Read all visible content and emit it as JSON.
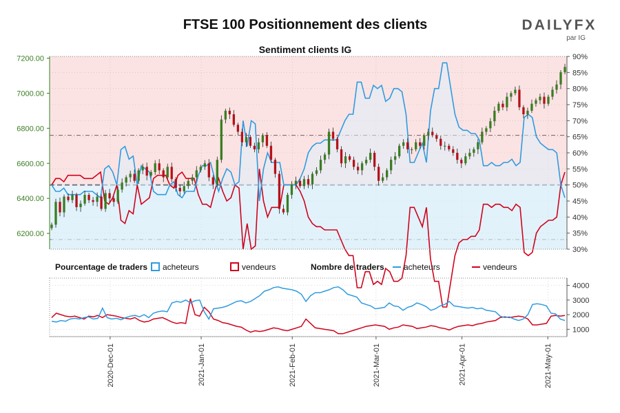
{
  "header": {
    "title": "FTSE 100 Positionnement des clients",
    "subtitle": "Sentiment clients IG",
    "logo_text": "DAILYFX",
    "logo_sub": "par IG"
  },
  "legend": {
    "pct_title": "Pourcentage de traders",
    "pct_buyers": "acheteurs",
    "pct_sellers": "vendeurs",
    "count_title": "Nombre de traders",
    "count_buyers": "acheteurs",
    "count_sellers": "vendeurs"
  },
  "colors": {
    "buyers": "#2f9be0",
    "sellers": "#d0021b",
    "candle_up": "#3a7d22",
    "candle_down": "#b5121b",
    "price_axis": "#3a7d22",
    "top_fill": "#fbe3e3",
    "bottom_fill": "#e6f3fb"
  },
  "chart_data": [
    {
      "type": "candlestick+line",
      "name": "price_and_sentiment",
      "left_axis": {
        "ylim": [
          6110,
          7210
        ],
        "ticks": [
          6200,
          6400,
          6600,
          6800,
          7000,
          7200
        ],
        "tick_labels": [
          "6200.00",
          "6400.00",
          "6600.00",
          "6800.00",
          "7000.00",
          "7200.00"
        ]
      },
      "right_axis": {
        "ylim": [
          30,
          90
        ],
        "ticks": [
          30,
          35,
          40,
          45,
          50,
          55,
          60,
          65,
          70,
          75,
          80,
          85,
          90
        ],
        "tick_labels": [
          "30%",
          "35%",
          "40%",
          "45%",
          "50%",
          "55%",
          "60%",
          "65%",
          "70%",
          "75%",
          "80%",
          "85%",
          "90%"
        ]
      },
      "reference_lines": {
        "dashdot_price": 6760,
        "dashdot_low_pct": 33,
        "dashed_mid_pct": 50
      },
      "price_closes": [
        6250,
        6380,
        6320,
        6410,
        6390,
        6420,
        6350,
        6370,
        6420,
        6390,
        6380,
        6410,
        6340,
        6430,
        6400,
        6380,
        6450,
        6490,
        6520,
        6540,
        6500,
        6560,
        6580,
        6530,
        6550,
        6600,
        6560,
        6520,
        6580,
        6510,
        6460,
        6440,
        6470,
        6500,
        6520,
        6560,
        6580,
        6600,
        6520,
        6480,
        6620,
        6850,
        6900,
        6880,
        6820,
        6780,
        6720,
        6750,
        6700,
        6680,
        6720,
        6760,
        6700,
        6620,
        6540,
        6340,
        6320,
        6420,
        6480,
        6500,
        6470,
        6510,
        6480,
        6540,
        6560,
        6620,
        6650,
        6780,
        6740,
        6680,
        6600,
        6640,
        6620,
        6580,
        6560,
        6600,
        6620,
        6660,
        6580,
        6500,
        6520,
        6560,
        6620,
        6640,
        6700,
        6720,
        6680,
        6680,
        6720,
        6700,
        6760,
        6780,
        6760,
        6740,
        6700,
        6700,
        6680,
        6660,
        6620,
        6600,
        6640,
        6660,
        6680,
        6720,
        6780,
        6800,
        6840,
        6900,
        6940,
        6920,
        6980,
        7000,
        7020,
        6920,
        6880,
        6900,
        6940,
        6960,
        6980,
        6940,
        6980,
        7020,
        7050,
        7120,
        7150
      ],
      "sentiment_pct_buyers": [
        50,
        48,
        48,
        49,
        47,
        47,
        47,
        47,
        48,
        48,
        48,
        47,
        46,
        55,
        56,
        54,
        50,
        61,
        62,
        58,
        59,
        50,
        56,
        55,
        54,
        48,
        47,
        47,
        47,
        50,
        51,
        47,
        46,
        48,
        48,
        48,
        53,
        56,
        56,
        57,
        52,
        48,
        52,
        55,
        54,
        50,
        51,
        70,
        62,
        70,
        69,
        45,
        55,
        60,
        57,
        57,
        57,
        50,
        50,
        50,
        50,
        52,
        55,
        60,
        62,
        63,
        63,
        64,
        64,
        64,
        64,
        67,
        70,
        72,
        72,
        82,
        82,
        77,
        77,
        81,
        80,
        81,
        76,
        77,
        80,
        80,
        79,
        72,
        57,
        57,
        60,
        63,
        57,
        73,
        80,
        80,
        88,
        88,
        80,
        72,
        68,
        67,
        67,
        66,
        66,
        64,
        56,
        56,
        57,
        56,
        56,
        57,
        57,
        58,
        56,
        57,
        71,
        72,
        71,
        65,
        63,
        62,
        61,
        61,
        60,
        50,
        46
      ]
    },
    {
      "type": "line",
      "name": "trader_counts",
      "ylim": [
        500,
        4500
      ],
      "ticks": [
        1000,
        2000,
        3000,
        4000
      ],
      "tick_labels": [
        "1000",
        "2000",
        "3000",
        "4000"
      ],
      "x_tick_labels": [
        "2020-Dec-01",
        "2021-Jan-01",
        "2021-Feb-01",
        "2021-Mar-01",
        "2021-Apr-01",
        "2021-May-01"
      ],
      "buyers": [
        1550,
        1500,
        1600,
        1550,
        1700,
        1750,
        1700,
        1800,
        1850,
        1700,
        1750,
        2450,
        1800,
        1700,
        1750,
        1650,
        1800,
        1900,
        1950,
        1850,
        2000,
        1800,
        2100,
        2200,
        2250,
        2200,
        2800,
        2900,
        2850,
        3000,
        2800,
        2950,
        3000,
        2200,
        1700,
        2400,
        2450,
        2500,
        2600,
        2750,
        2900,
        2950,
        2800,
        2900,
        3100,
        3300,
        3600,
        3700,
        3850,
        3900,
        3800,
        3750,
        3700,
        3600,
        3400,
        2900,
        3300,
        3500,
        3500,
        3600,
        3700,
        3850,
        3900,
        3700,
        3400,
        3300,
        3200,
        2800,
        2700,
        2600,
        2400,
        2450,
        2500,
        2800,
        2600,
        2550,
        2300,
        2500,
        2600,
        2800,
        2700,
        2550,
        2300,
        2400,
        2600,
        2700,
        2900,
        2600,
        2550,
        2500,
        2450,
        2500,
        2400,
        2450,
        2300,
        2250,
        2200,
        1900,
        1800,
        1850,
        1700,
        1600,
        1700,
        2000,
        2700,
        2750,
        2700,
        2600,
        2100,
        2050,
        1700,
        1600
      ],
      "sellers": [
        1800,
        2100,
        2000,
        1900,
        1850,
        1900,
        1800,
        1700,
        1900,
        1850,
        1950,
        1800,
        2000,
        1950,
        1900,
        1800,
        1750,
        1700,
        1800,
        1600,
        1500,
        1550,
        1700,
        1750,
        1800,
        1650,
        1500,
        1400,
        1450,
        1400,
        3100,
        2000,
        1900,
        2500,
        2200,
        1700,
        1600,
        1450,
        1400,
        1300,
        1200,
        1150,
        950,
        800,
        900,
        850,
        900,
        1000,
        1100,
        1050,
        950,
        900,
        1000,
        1100,
        1200,
        1700,
        1400,
        1100,
        1050,
        1000,
        950,
        900,
        700,
        700,
        800,
        900,
        1000,
        1100,
        1200,
        1250,
        1300,
        1250,
        1200,
        1000,
        1100,
        1150,
        1300,
        1250,
        1200,
        1050,
        1100,
        1150,
        1250,
        1200,
        1100,
        1050,
        950,
        1100,
        1200,
        1250,
        1300,
        1250,
        1350,
        1400,
        1500,
        1550,
        1600,
        1800,
        1850,
        1800,
        1850,
        1900,
        1850,
        1700,
        1300,
        1300,
        1350,
        1400,
        1900,
        1950,
        1900,
        1950
      ]
    }
  ]
}
